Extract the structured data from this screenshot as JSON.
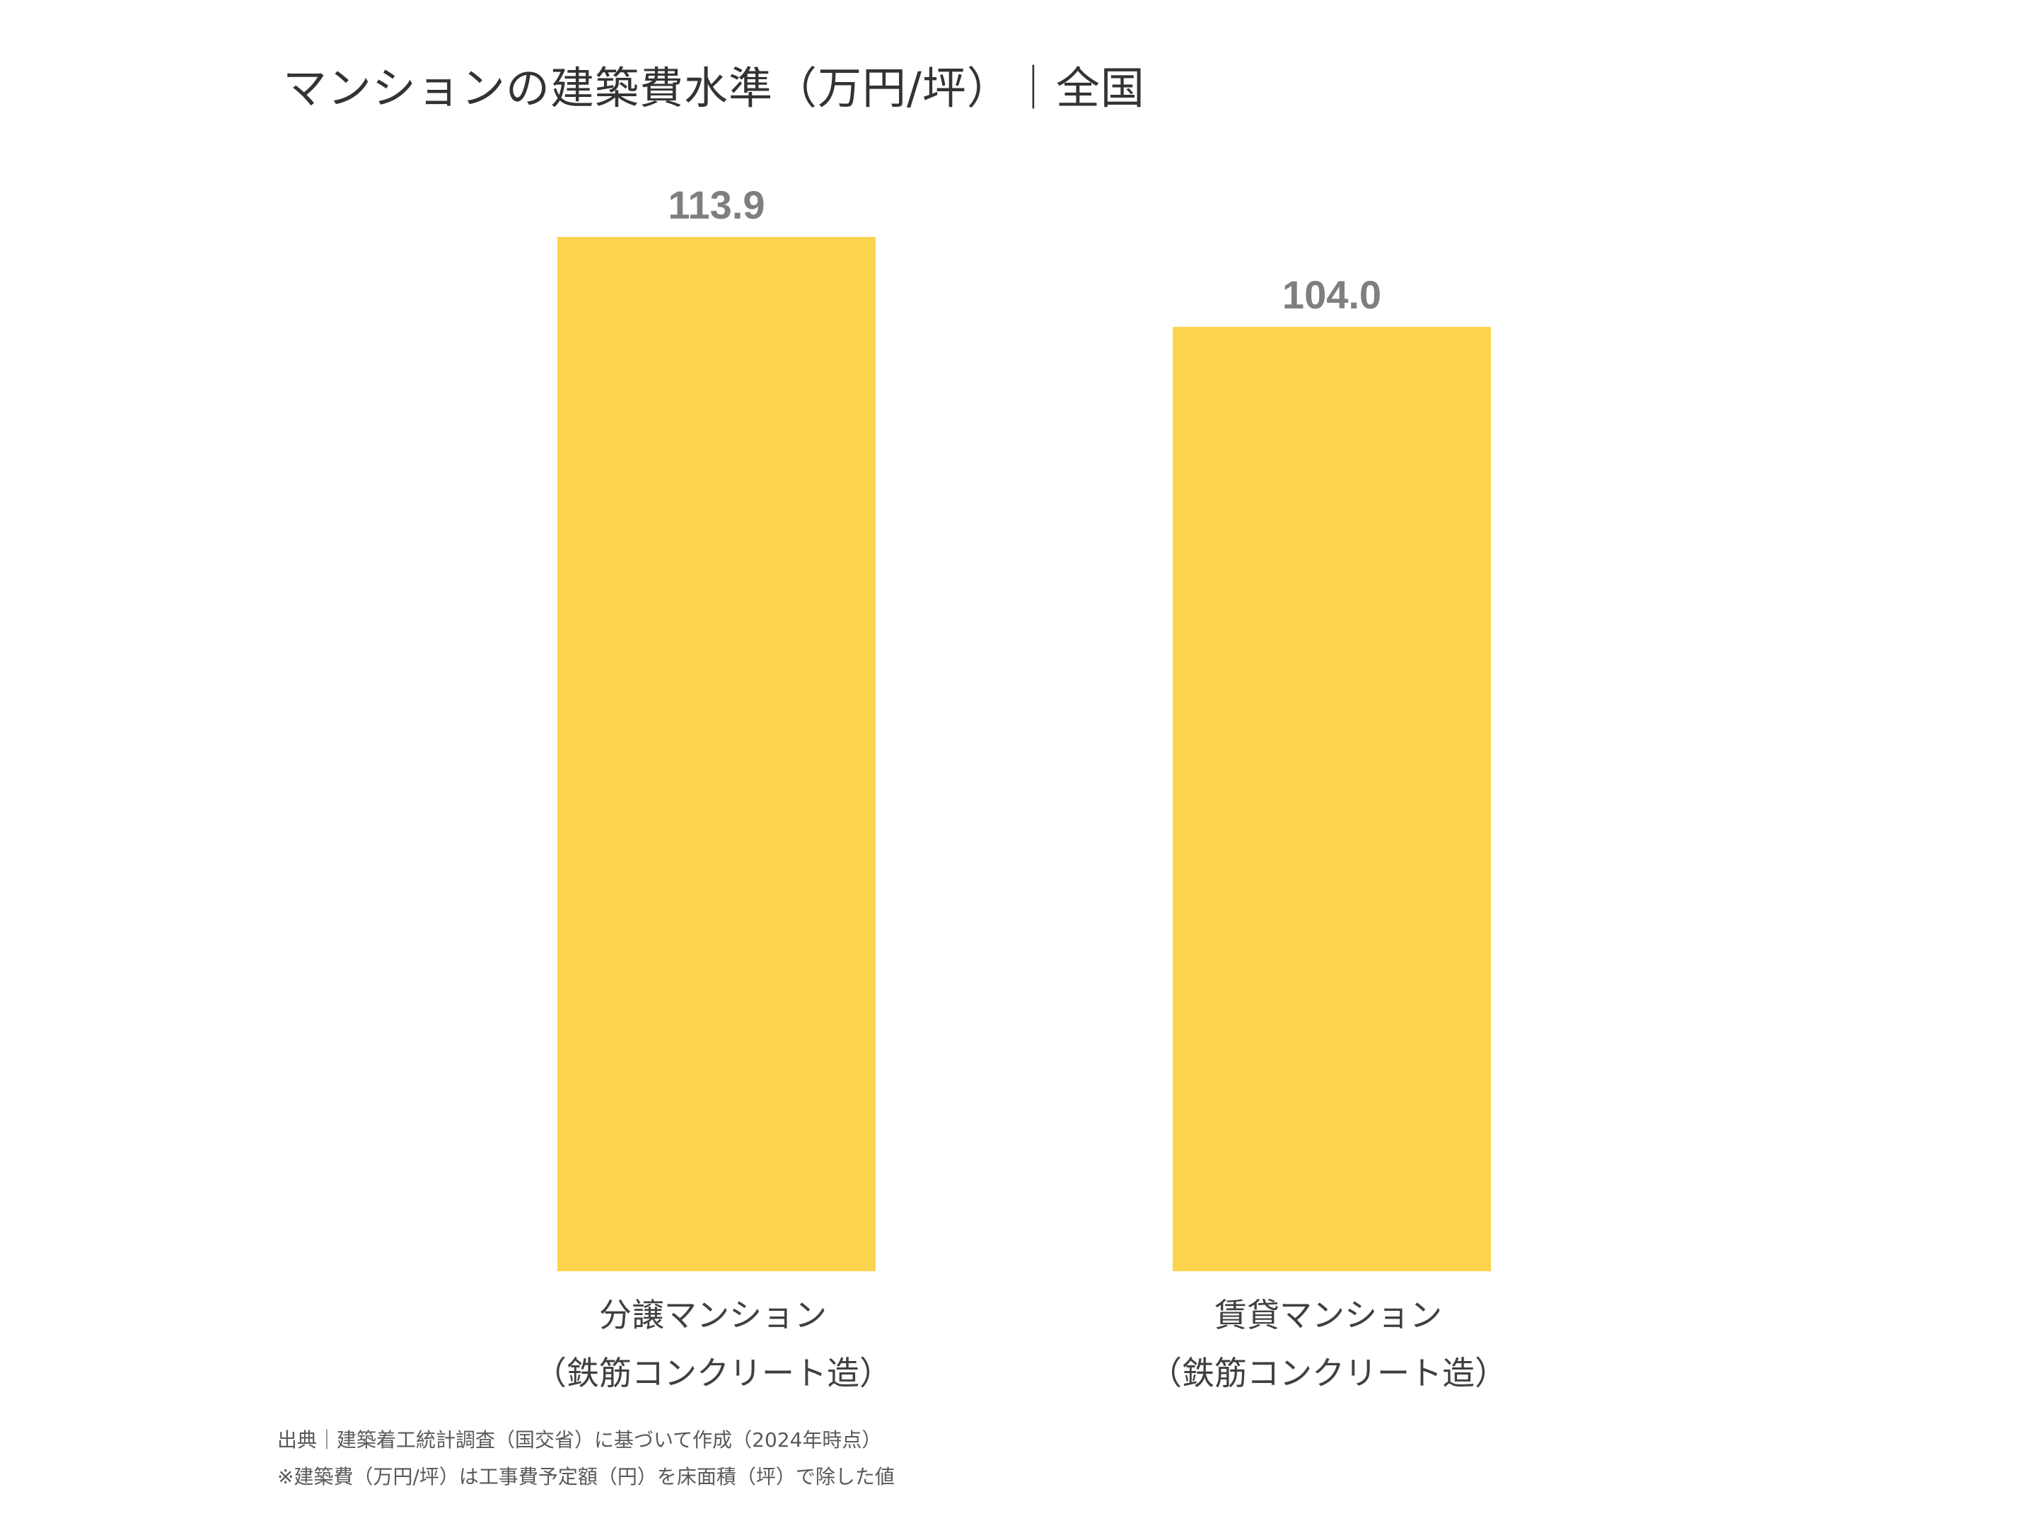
{
  "title": "マンションの建築費水準（万円/坪）｜全国",
  "chart_data": {
    "type": "bar",
    "title": "マンションの建築費水準（万円/坪）｜全国",
    "categories": [
      [
        "分譲マンション",
        "（鉄筋コンクリート造）"
      ],
      [
        "賃貸マンション",
        "（鉄筋コンクリート造）"
      ]
    ],
    "values": [
      113.9,
      104.0
    ],
    "value_labels": [
      "113.9",
      "104.0"
    ],
    "bar_color": "#FCD34D",
    "value_label_color": "#7F7F7F",
    "ylim": [
      0,
      113.9
    ],
    "grid": false,
    "legend": "none",
    "xlabel": "",
    "ylabel": ""
  },
  "footnotes": [
    "出典｜建築着工統計調査（国交省）に基づいて作成（2024年時点）",
    "※建築費（万円/坪）は工事費予定額（円）を床面積（坪）で除した値"
  ]
}
